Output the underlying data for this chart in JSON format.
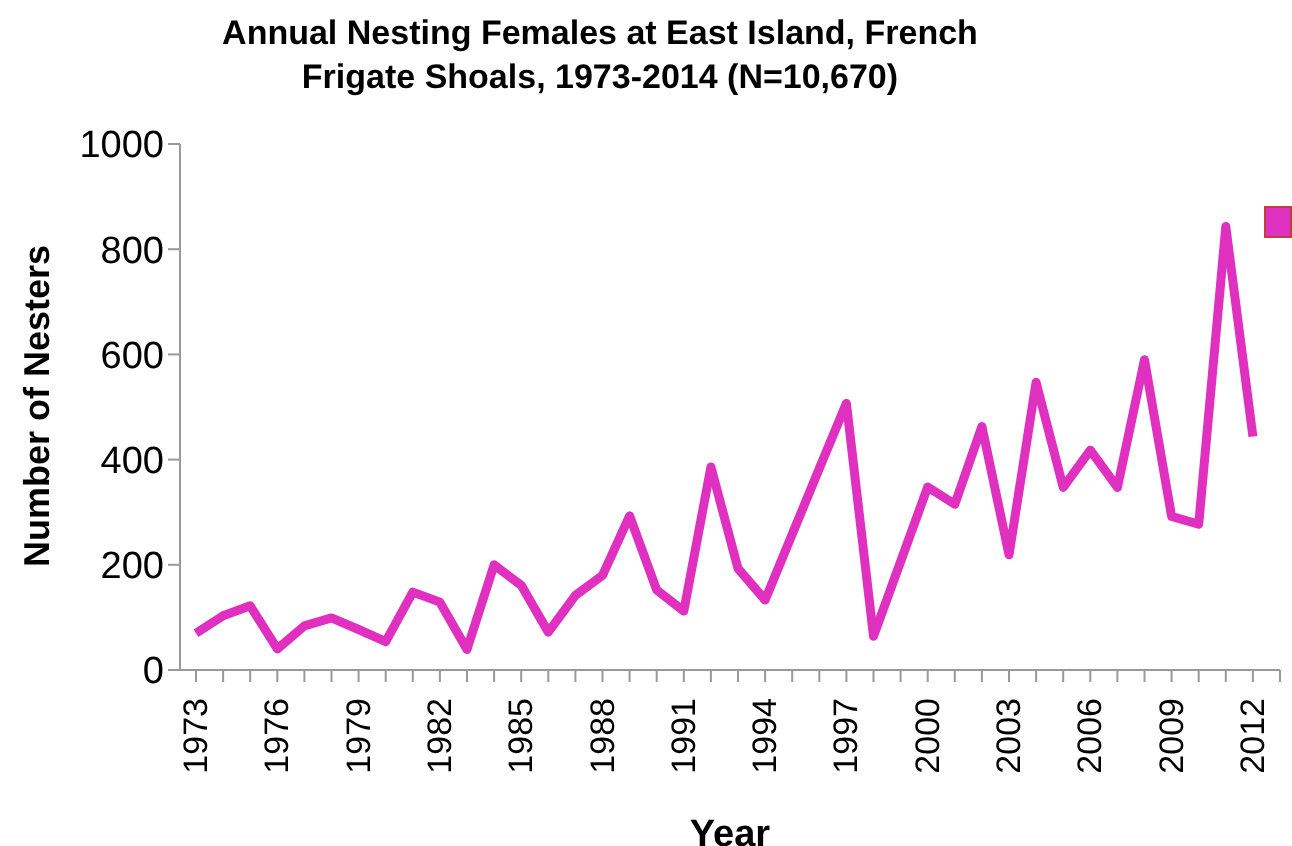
{
  "chart_data": {
    "type": "line",
    "title": "Annual Nesting Females at East Island, French Frigate Shoals, 1973-2014 (N=10,670)",
    "xlabel": "Year",
    "ylabel": "Number of Nesters",
    "categories": [
      "1973",
      null,
      null,
      "1976",
      null,
      null,
      "1979",
      null,
      null,
      "1982",
      null,
      null,
      "1985",
      null,
      null,
      "1988",
      null,
      null,
      "1991",
      null,
      null,
      "1994",
      null,
      null,
      "1997",
      null,
      null,
      "2000",
      null,
      null,
      "2003",
      null,
      null,
      "2006",
      null,
      null,
      "2009",
      null,
      null,
      "2012",
      null
    ],
    "series": [
      {
        "color": "#e030c0",
        "values": [
          70,
          103,
          122,
          40,
          84,
          99,
          77,
          54,
          148,
          129,
          39,
          200,
          161,
          72,
          142,
          180,
          293,
          152,
          112,
          386,
          193,
          133,
          258,
          383,
          507,
          64,
          206,
          348,
          315,
          463,
          219,
          547,
          347,
          418,
          347,
          590,
          292,
          277,
          843,
          444,
          null
        ]
      }
    ],
    "ylim": [
      0,
      1000
    ],
    "yticks": [
      0,
      200,
      400,
      600,
      800,
      1000
    ],
    "grid": false,
    "marker": "none",
    "line_style": "solid"
  }
}
